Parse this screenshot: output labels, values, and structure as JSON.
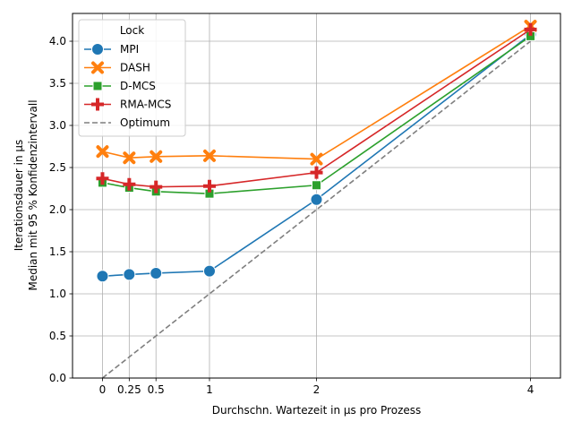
{
  "chart_data": {
    "type": "line",
    "xlabel": "Durchschn. Wartezeit in µs pro Prozess",
    "ylabel_lines": [
      "Iterationsdauer in µs",
      "Median mit 95 % Konfidenzintervall"
    ],
    "x": [
      0,
      0.25,
      0.5,
      1,
      2,
      4
    ],
    "x_tick_labels": [
      "0",
      "0.25",
      "0.5",
      "1",
      "2",
      "4"
    ],
    "y_ticks": [
      0.0,
      0.5,
      1.0,
      1.5,
      2.0,
      2.5,
      3.0,
      3.5,
      4.0
    ],
    "y_tick_labels": [
      "0.0",
      "0.5",
      "1.0",
      "1.5",
      "2.0",
      "2.5",
      "3.0",
      "3.5",
      "4.0"
    ],
    "xlim": [
      -0.28,
      4.28
    ],
    "ylim": [
      0,
      4.33
    ],
    "grid": true,
    "legend": {
      "title": "Lock",
      "placement": "top-left"
    },
    "series": [
      {
        "name": "MPI",
        "color": "#1f77b4",
        "marker": "circle",
        "values": [
          1.21,
          1.23,
          1.245,
          1.27,
          2.12,
          4.08
        ]
      },
      {
        "name": "DASH",
        "color": "#ff7f0e",
        "marker": "x",
        "values": [
          2.69,
          2.615,
          2.63,
          2.64,
          2.6,
          4.18
        ]
      },
      {
        "name": "D-MCS",
        "color": "#2ca02c",
        "marker": "square",
        "values": [
          2.32,
          2.26,
          2.215,
          2.19,
          2.29,
          4.06
        ]
      },
      {
        "name": "RMA-MCS",
        "color": "#d62728",
        "marker": "plus",
        "values": [
          2.37,
          2.3,
          2.27,
          2.28,
          2.44,
          4.14
        ]
      },
      {
        "name": "Optimum",
        "color": "#7f7f7f",
        "marker": "none",
        "dashed": true,
        "values": [
          0,
          0.25,
          0.5,
          1,
          2,
          4
        ]
      }
    ]
  }
}
